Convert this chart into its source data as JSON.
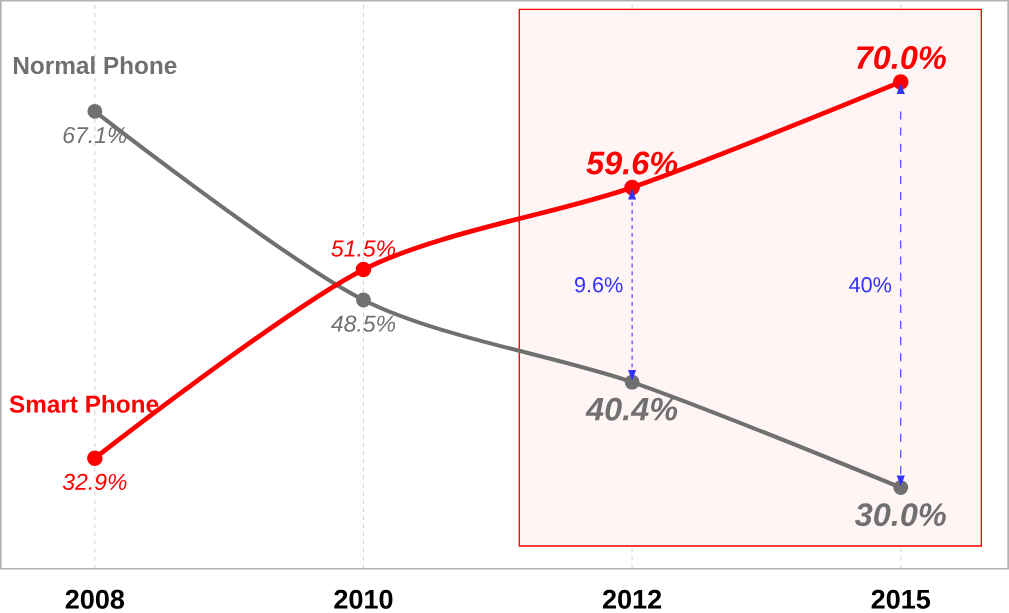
{
  "chart_data": {
    "type": "line",
    "categories": [
      "2008",
      "2010",
      "2012",
      "2015"
    ],
    "series": [
      {
        "name": "Normal Phone",
        "color": "#707070",
        "values": [
          67.1,
          48.5,
          40.4,
          30.0
        ],
        "value_labels": [
          "67.1%",
          "48.5%",
          "40.4%",
          "30.0%"
        ]
      },
      {
        "name": "Smart Phone",
        "color": "#ff0000",
        "values": [
          32.9,
          51.5,
          59.6,
          70.0
        ],
        "value_labels": [
          "32.9%",
          "51.5%",
          "59.6%",
          "70.0%"
        ]
      }
    ],
    "marker": "circle",
    "grid": "x",
    "tick_labels": "x",
    "annotations": [
      "9.6%",
      "40%"
    ],
    "bands": [
      {
        "axis": "x",
        "from": "2012",
        "to": "2015",
        "color": "#ff0000"
      }
    ]
  }
}
